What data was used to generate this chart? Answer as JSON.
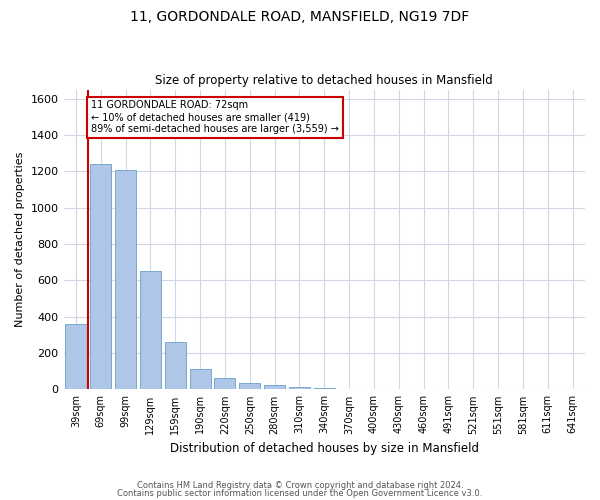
{
  "title_line1": "11, GORDONDALE ROAD, MANSFIELD, NG19 7DF",
  "title_line2": "Size of property relative to detached houses in Mansfield",
  "xlabel": "Distribution of detached houses by size in Mansfield",
  "ylabel": "Number of detached properties",
  "footer_line1": "Contains HM Land Registry data © Crown copyright and database right 2024.",
  "footer_line2": "Contains public sector information licensed under the Open Government Licence v3.0.",
  "annotation_line1": "11 GORDONDALE ROAD: 72sqm",
  "annotation_line2": "← 10% of detached houses are smaller (419)",
  "annotation_line3": "89% of semi-detached houses are larger (3,559) →",
  "bar_color": "#aec6e8",
  "bar_edge_color": "#6a9fc8",
  "grid_color": "#d0d8e8",
  "annotation_box_color": "#ffffff",
  "annotation_box_edge": "#cc0000",
  "red_line_color": "#cc0000",
  "categories": [
    "39sqm",
    "69sqm",
    "99sqm",
    "129sqm",
    "159sqm",
    "190sqm",
    "220sqm",
    "250sqm",
    "280sqm",
    "310sqm",
    "340sqm",
    "370sqm",
    "400sqm",
    "430sqm",
    "460sqm",
    "491sqm",
    "521sqm",
    "551sqm",
    "581sqm",
    "611sqm",
    "641sqm"
  ],
  "values": [
    360,
    1240,
    1210,
    650,
    260,
    115,
    65,
    35,
    25,
    15,
    10,
    5,
    5,
    3,
    2,
    1,
    1,
    0,
    0,
    0,
    0
  ],
  "ylim": [
    0,
    1650
  ],
  "yticks": [
    0,
    200,
    400,
    600,
    800,
    1000,
    1200,
    1400,
    1600
  ],
  "bar_width": 0.85,
  "figsize": [
    6.0,
    5.0
  ],
  "dpi": 100,
  "background_color": "#ffffff"
}
